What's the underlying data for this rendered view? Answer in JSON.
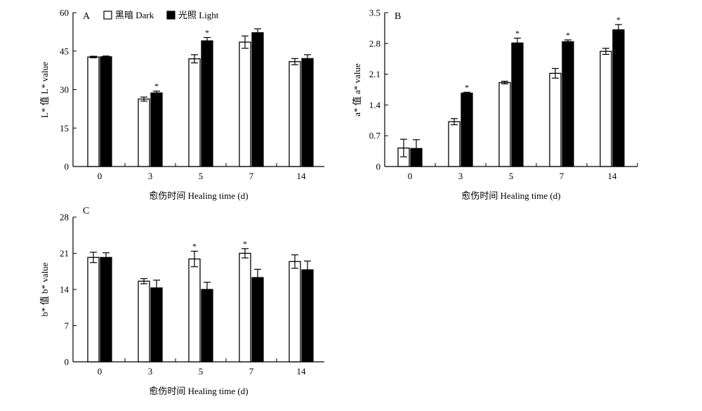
{
  "legend": {
    "dark": "黑暗 Dark",
    "light": "光照 Light"
  },
  "chart_data": [
    {
      "panel": "A",
      "type": "bar",
      "categories": [
        "0",
        "3",
        "5",
        "7",
        "14"
      ],
      "xlabel": "愈伤时间 Healing time (d)",
      "ylabel": "L* 值 L* value",
      "ylim": [
        0,
        60
      ],
      "yticks": [
        "0",
        "15",
        "30",
        "45",
        "60"
      ],
      "legend_position": "top-left",
      "series": [
        {
          "name": "黑暗 Dark",
          "color": "#ffffff",
          "values": [
            42.7,
            26.3,
            42.0,
            48.5,
            40.9
          ],
          "errors": [
            0.3,
            0.8,
            1.6,
            2.4,
            1.2
          ]
        },
        {
          "name": "光照 Light",
          "color": "#000000",
          "values": [
            42.8,
            28.7,
            49.0,
            52.2,
            42.1
          ],
          "errors": [
            0.3,
            0.7,
            1.3,
            1.5,
            1.5
          ]
        }
      ],
      "annotations": [
        {
          "category": "3",
          "series": "光照 Light",
          "text": "*"
        },
        {
          "category": "5",
          "series": "光照 Light",
          "text": "*"
        }
      ]
    },
    {
      "panel": "B",
      "type": "bar",
      "categories": [
        "0",
        "3",
        "5",
        "7",
        "14"
      ],
      "xlabel": "愈伤时间 Healing time (d)",
      "ylabel": "a* 值 a* value",
      "ylim": [
        0,
        3.5
      ],
      "yticks": [
        "0",
        "0.7",
        "1.4",
        "2.1",
        "2.8",
        "3.5"
      ],
      "series": [
        {
          "name": "黑暗 Dark",
          "color": "#ffffff",
          "values": [
            0.42,
            1.02,
            1.91,
            2.12,
            2.62
          ],
          "errors": [
            0.2,
            0.07,
            0.03,
            0.11,
            0.07
          ]
        },
        {
          "name": "光照 Light",
          "color": "#000000",
          "values": [
            0.41,
            1.67,
            2.81,
            2.84,
            3.11
          ],
          "errors": [
            0.2,
            0.02,
            0.11,
            0.04,
            0.12
          ]
        }
      ],
      "annotations": [
        {
          "category": "3",
          "series": "光照 Light",
          "text": "*"
        },
        {
          "category": "5",
          "series": "光照 Light",
          "text": "*"
        },
        {
          "category": "7",
          "series": "光照 Light",
          "text": "*"
        },
        {
          "category": "14",
          "series": "光照 Light",
          "text": "*"
        }
      ]
    },
    {
      "panel": "C",
      "type": "bar",
      "categories": [
        "0",
        "3",
        "5",
        "7",
        "14"
      ],
      "xlabel": "愈伤时间 Healing time (d)",
      "ylabel": "b* 值 b* value",
      "ylim": [
        0,
        28
      ],
      "yticks": [
        "0",
        "7",
        "14",
        "21",
        "28"
      ],
      "series": [
        {
          "name": "黑暗 Dark",
          "color": "#ffffff",
          "values": [
            20.2,
            15.6,
            19.9,
            21.0,
            19.4
          ],
          "errors": [
            1.0,
            0.5,
            1.5,
            0.9,
            1.3
          ]
        },
        {
          "name": "光照 Light",
          "color": "#000000",
          "values": [
            20.2,
            14.3,
            14.0,
            16.3,
            17.8
          ],
          "errors": [
            0.9,
            1.5,
            1.4,
            1.6,
            1.7
          ]
        }
      ],
      "annotations": [
        {
          "category": "5",
          "series": "黑暗 Dark",
          "text": "*"
        },
        {
          "category": "7",
          "series": "黑暗 Dark",
          "text": "*"
        }
      ]
    }
  ]
}
